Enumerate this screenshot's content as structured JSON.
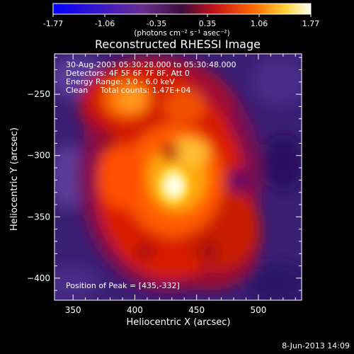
{
  "chart_data": {
    "type": "heatmap",
    "title": "Reconstructed RHESSI Image",
    "colorbar": {
      "min": -1.77,
      "max": 1.77,
      "ticks": [
        "-1.77",
        "-1.06",
        "-0.35",
        "0.35",
        "1.06",
        "1.77"
      ],
      "tick_values": [
        -1.77,
        -1.06,
        -0.35,
        0.35,
        1.06,
        1.77
      ],
      "units_label": "(photons cm⁻² s⁻¹ asec⁻²)"
    },
    "xlabel": "Heliocentric X (arcsec)",
    "ylabel": "Heliocentric Y (arcsec)",
    "xlim": [
      335,
      535
    ],
    "ylim": [
      -418,
      -217
    ],
    "x_ticks": [
      350,
      400,
      450,
      500
    ],
    "y_ticks": [
      -250,
      -300,
      -350,
      -400
    ],
    "annotation_lines": [
      "30-Aug-2003 05:30:28.000 to 05:30:48.000",
      "Detectors: 4F 5F 6F 7F 8F, Att 0",
      "Energy Range: 3.0 - 6.0 keV",
      "Clean     Total counts: 1.47E+04"
    ],
    "peak_label": "Position of Peak = [435,-332]",
    "peak": {
      "x": 435,
      "y": -332
    },
    "colors": {
      "background": "#000000",
      "low": "#3b1f74",
      "mid": "#d81a00",
      "high": "#ffffff"
    }
  },
  "footer": {
    "timestamp": "8-Jun-2013 14:09"
  }
}
